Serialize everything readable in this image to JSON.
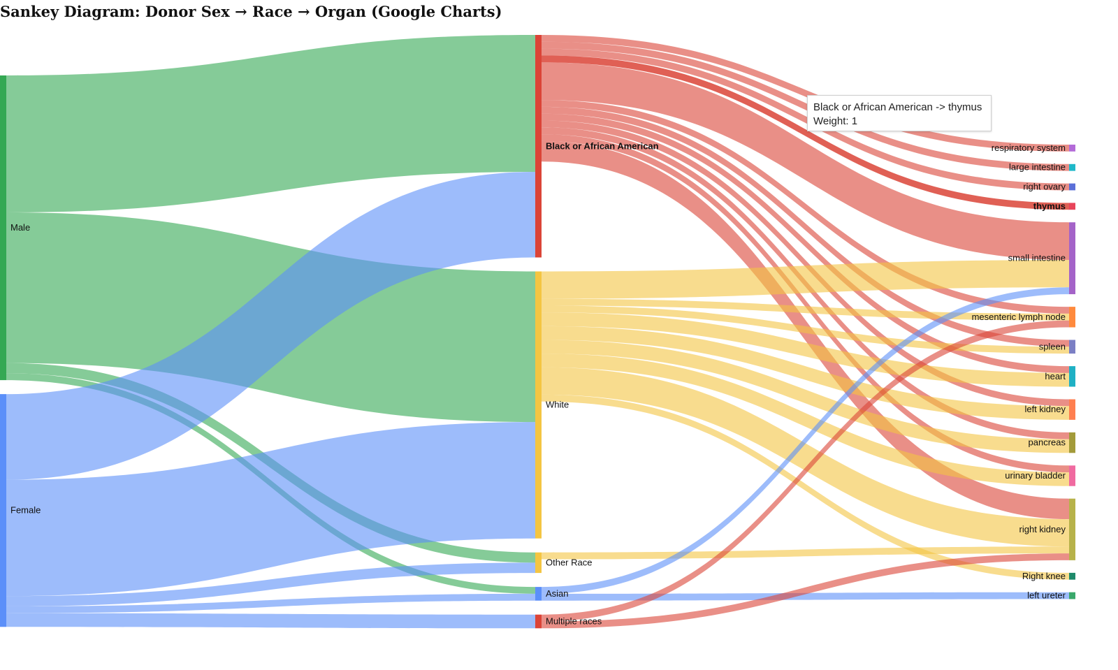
{
  "page": {
    "title": "Sankey Diagram: Donor Sex → Race → Organ (Google Charts)"
  },
  "tooltip": {
    "line1": "Black or African American -> thymus",
    "line2": "Weight: 1"
  },
  "chart_data": {
    "type": "sankey",
    "nodes": [
      {
        "id": "Male",
        "label": "Male",
        "color": "#34a853"
      },
      {
        "id": "Female",
        "label": "Female",
        "color": "#5b8ff9"
      },
      {
        "id": "Black or African American",
        "label": "Black or African American",
        "color": "#db4437",
        "highlighted": true
      },
      {
        "id": "White",
        "label": "White",
        "color": "#f4c542"
      },
      {
        "id": "Other Race",
        "label": "Other Race",
        "color": "#f4c542"
      },
      {
        "id": "Asian",
        "label": "Asian",
        "color": "#5b8ff9"
      },
      {
        "id": "Multiple races",
        "label": "Multiple races",
        "color": "#db4437"
      },
      {
        "id": "respiratory system",
        "label": "respiratory system",
        "color": "#b36ad8"
      },
      {
        "id": "large intestine",
        "label": "large intestine",
        "color": "#1fb8c9"
      },
      {
        "id": "right ovary",
        "label": "right ovary",
        "color": "#5b6fd8"
      },
      {
        "id": "thymus",
        "label": "thymus",
        "color": "#e8445a",
        "highlighted": true
      },
      {
        "id": "small intestine",
        "label": "small intestine",
        "color": "#a463c8"
      },
      {
        "id": "mesenteric lymph node",
        "label": "mesenteric lymph node",
        "color": "#ff8a3d"
      },
      {
        "id": "spleen",
        "label": "spleen",
        "color": "#7b7fc4"
      },
      {
        "id": "heart",
        "label": "heart",
        "color": "#1fb0c4"
      },
      {
        "id": "left kidney",
        "label": "left kidney",
        "color": "#ff7f50"
      },
      {
        "id": "pancreas",
        "label": "pancreas",
        "color": "#a39b3a"
      },
      {
        "id": "urinary bladder",
        "label": "urinary bladder",
        "color": "#f06aa0"
      },
      {
        "id": "right kidney",
        "label": "right kidney",
        "color": "#b7b24a"
      },
      {
        "id": "Right knee",
        "label": "Right knee",
        "color": "#1f8a6a"
      },
      {
        "id": "left ureter",
        "label": "left ureter",
        "color": "#3aa86b"
      }
    ],
    "links": [
      {
        "source": "Male",
        "target": "Black or African American",
        "value": 20
      },
      {
        "source": "Male",
        "target": "White",
        "value": 22
      },
      {
        "source": "Male",
        "target": "Other Race",
        "value": 1.5
      },
      {
        "source": "Male",
        "target": "Asian",
        "value": 1
      },
      {
        "source": "Female",
        "target": "Black or African American",
        "value": 12.5
      },
      {
        "source": "Female",
        "target": "White",
        "value": 17
      },
      {
        "source": "Female",
        "target": "Other Race",
        "value": 1.5
      },
      {
        "source": "Female",
        "target": "Asian",
        "value": 1
      },
      {
        "source": "Female",
        "target": "Multiple races",
        "value": 2
      },
      {
        "source": "Black or African American",
        "target": "respiratory system",
        "value": 1
      },
      {
        "source": "Black or African American",
        "target": "large intestine",
        "value": 1
      },
      {
        "source": "Black or African American",
        "target": "right ovary",
        "value": 1
      },
      {
        "source": "Black or African American",
        "target": "thymus",
        "value": 1
      },
      {
        "source": "Black or African American",
        "target": "small intestine",
        "value": 5.5
      },
      {
        "source": "Black or African American",
        "target": "mesenteric lymph node",
        "value": 1
      },
      {
        "source": "Black or African American",
        "target": "spleen",
        "value": 1
      },
      {
        "source": "Black or African American",
        "target": "heart",
        "value": 1
      },
      {
        "source": "Black or African American",
        "target": "left kidney",
        "value": 1
      },
      {
        "source": "Black or African American",
        "target": "pancreas",
        "value": 1
      },
      {
        "source": "Black or African American",
        "target": "urinary bladder",
        "value": 1
      },
      {
        "source": "Black or African American",
        "target": "right kidney",
        "value": 3
      },
      {
        "source": "White",
        "target": "small intestine",
        "value": 4
      },
      {
        "source": "White",
        "target": "mesenteric lymph node",
        "value": 1
      },
      {
        "source": "White",
        "target": "spleen",
        "value": 1
      },
      {
        "source": "White",
        "target": "heart",
        "value": 2
      },
      {
        "source": "White",
        "target": "left kidney",
        "value": 2
      },
      {
        "source": "White",
        "target": "pancreas",
        "value": 2
      },
      {
        "source": "White",
        "target": "urinary bladder",
        "value": 2
      },
      {
        "source": "White",
        "target": "right kidney",
        "value": 4
      },
      {
        "source": "White",
        "target": "Right knee",
        "value": 1
      },
      {
        "source": "Other Race",
        "target": "right kidney",
        "value": 1
      },
      {
        "source": "Asian",
        "target": "small intestine",
        "value": 1
      },
      {
        "source": "Asian",
        "target": "left ureter",
        "value": 1
      },
      {
        "source": "Multiple races",
        "target": "right kidney",
        "value": 1
      },
      {
        "source": "Multiple races",
        "target": "mesenteric lymph node",
        "value": 1
      }
    ]
  }
}
